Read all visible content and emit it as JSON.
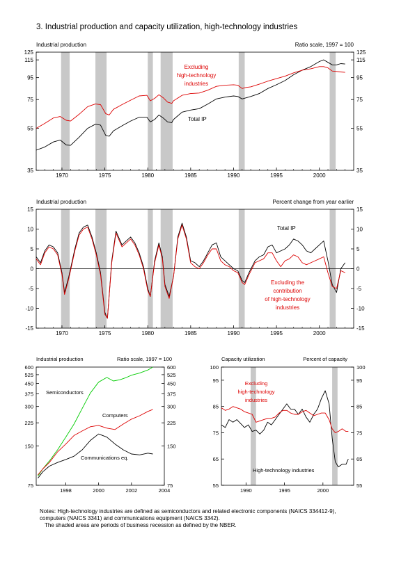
{
  "figure_title": "3. Industrial production and capacity utilization, high-technology industries",
  "recessions": [
    [
      1969.9,
      1970.9
    ],
    [
      1973.9,
      1975.2
    ],
    [
      1980.0,
      1980.6
    ],
    [
      1981.5,
      1982.9
    ],
    [
      1990.6,
      1991.3
    ],
    [
      2001.2,
      2001.9
    ]
  ],
  "notes": {
    "line1": "Notes: High-technology industries are defined as semiconductors and related electronic components (NAICS 334412-9),",
    "line2": "computers (NAICS 3341) and communications equipment (NAICS 3342).",
    "line3": "The shaded areas are periods of business recession as defined by the NBER."
  },
  "colors": {
    "black_series": "#000000",
    "red_series": "#dd0000",
    "green_series": "#00cc00",
    "recession_shade": "#c8c8c8"
  },
  "chart_data": [
    {
      "id": "ip_levels",
      "type": "line",
      "title": "Industrial production",
      "ylabel_right": "Ratio scale, 1997 = 100",
      "yscale": "log",
      "xlim": [
        1967,
        2004
      ],
      "ylim": [
        35,
        125
      ],
      "yticks": [
        35,
        55,
        75,
        95,
        115,
        125
      ],
      "xticks": [
        1970,
        1975,
        1980,
        1985,
        1990,
        1995,
        2000
      ],
      "series": [
        {
          "name": "Total IP",
          "color": "black",
          "x": [
            1967,
            1968,
            1969,
            1969.8,
            1970.5,
            1971,
            1972,
            1973,
            1973.9,
            1974.5,
            1975.1,
            1975.5,
            1976,
            1977,
            1978,
            1979,
            1979.9,
            1980.3,
            1980.8,
            1981.3,
            1981.8,
            1982.3,
            1982.8,
            1983,
            1984,
            1985,
            1986,
            1987,
            1988,
            1989,
            1990,
            1990.5,
            1991,
            1991.5,
            1992,
            1993,
            1994,
            1995,
            1996,
            1997,
            1998,
            1999,
            2000,
            2000.5,
            2001,
            2001.5,
            2002,
            2002.5,
            2003
          ],
          "y": [
            43.5,
            45,
            47.5,
            48.5,
            46,
            45.8,
            50,
            55,
            57.5,
            57,
            51,
            50.5,
            53.5,
            56.5,
            59.5,
            62,
            62,
            59,
            60.5,
            63.5,
            61.5,
            59,
            58.5,
            60.5,
            65.5,
            67,
            68,
            71.5,
            75.5,
            77,
            78,
            77.5,
            75.5,
            76.5,
            77.5,
            80,
            84.5,
            88,
            92,
            98,
            103,
            107,
            113,
            115,
            112,
            109,
            109,
            110.5,
            110
          ]
        },
        {
          "name": "Excluding high-technology industries",
          "color": "red",
          "x": [
            1967,
            1968,
            1969,
            1969.8,
            1970.5,
            1971,
            1972,
            1973,
            1973.9,
            1974.5,
            1975.1,
            1975.5,
            1976,
            1977,
            1978,
            1979,
            1979.9,
            1980.3,
            1980.8,
            1981.3,
            1981.8,
            1982.3,
            1982.8,
            1983,
            1984,
            1985,
            1986,
            1987,
            1988,
            1989,
            1990,
            1990.5,
            1991,
            1991.5,
            1992,
            1993,
            1994,
            1995,
            1996,
            1997,
            1998,
            1999,
            2000,
            2000.5,
            2001,
            2001.5,
            2002,
            2002.5,
            2003
          ],
          "y": [
            55,
            58,
            61.5,
            62.5,
            60,
            59.5,
            64,
            69.5,
            71.5,
            71,
            64.5,
            63.5,
            67.5,
            71,
            74.5,
            78,
            78.5,
            74,
            76,
            79,
            76.5,
            73,
            72,
            74,
            78.5,
            80,
            80.5,
            83,
            86.5,
            87.5,
            88,
            87.5,
            84.5,
            85.5,
            86,
            88.5,
            91.5,
            94,
            96.5,
            100,
            103,
            104.5,
            107,
            107,
            105.5,
            102,
            101.5,
            101,
            100.5
          ]
        }
      ],
      "annotations": [
        {
          "text": "Excluding",
          "color": "red"
        },
        {
          "text": "high-technology",
          "color": "red"
        },
        {
          "text": "industries",
          "color": "red"
        },
        {
          "text": "Total IP",
          "color": "black"
        }
      ]
    },
    {
      "id": "ip_pct_change",
      "type": "line",
      "title": "Industrial production",
      "ylabel_right": "Percent change from year earlier",
      "xlim": [
        1967,
        2004
      ],
      "ylim": [
        -15,
        15
      ],
      "yticks": [
        -15,
        -10,
        -5,
        0,
        5,
        10,
        15
      ],
      "xticks": [
        1970,
        1975,
        1980,
        1985,
        1990,
        1995,
        2000
      ],
      "zero_line": true,
      "series": [
        {
          "name": "Total IP",
          "color": "black",
          "x": [
            1967,
            1967.5,
            1968,
            1968.5,
            1969,
            1969.5,
            1970,
            1970.3,
            1970.8,
            1971.5,
            1972,
            1972.5,
            1973,
            1973.5,
            1974,
            1974.5,
            1975,
            1975.3,
            1975.8,
            1976.3,
            1977,
            1977.5,
            1978,
            1978.5,
            1979,
            1979.5,
            1980,
            1980.3,
            1980.8,
            1981.3,
            1981.7,
            1982,
            1982.5,
            1983,
            1983.5,
            1984,
            1984.5,
            1985,
            1985.5,
            1986,
            1986.5,
            1987,
            1987.5,
            1988,
            1988.5,
            1989,
            1989.5,
            1990,
            1990.5,
            1991,
            1991.3,
            1991.8,
            1992.5,
            1993,
            1993.5,
            1994,
            1994.5,
            1995,
            1995.5,
            1996,
            1996.5,
            1997,
            1997.5,
            1998,
            1998.5,
            1999,
            1999.5,
            2000,
            2000.5,
            2001,
            2001.5,
            2002,
            2002.5,
            2003
          ],
          "y": [
            3,
            1.5,
            4.5,
            6,
            5.5,
            4,
            -1,
            -6,
            -2,
            5,
            9,
            10.5,
            11,
            8,
            4,
            -1,
            -11,
            -12.5,
            2,
            9.5,
            6,
            7,
            8,
            6.5,
            4,
            0.5,
            -5,
            -7,
            2,
            6.5,
            3,
            -4,
            -7,
            -2,
            8,
            11.5,
            8,
            2,
            1.5,
            0.5,
            2,
            4,
            6,
            6.5,
            3,
            2,
            1,
            0,
            -0.5,
            -3,
            -3.5,
            -1,
            2,
            3,
            3.5,
            5.5,
            6,
            4,
            4.5,
            5,
            6,
            7.5,
            7,
            6,
            4.5,
            4,
            5,
            6,
            7,
            2,
            -4,
            -6,
            0,
            1.5
          ]
        },
        {
          "name": "Excluding the contribution of high-technology industries",
          "color": "red",
          "x": [
            1967,
            1967.5,
            1968,
            1968.5,
            1969,
            1969.5,
            1970,
            1970.3,
            1970.8,
            1971.5,
            1972,
            1972.5,
            1973,
            1973.5,
            1974,
            1974.5,
            1975,
            1975.3,
            1975.8,
            1976.3,
            1977,
            1977.5,
            1978,
            1978.5,
            1979,
            1979.5,
            1980,
            1980.3,
            1980.8,
            1981.3,
            1981.7,
            1982,
            1982.5,
            1983,
            1983.5,
            1984,
            1984.5,
            1985,
            1985.5,
            1986,
            1986.5,
            1987,
            1987.5,
            1988,
            1988.5,
            1989,
            1989.5,
            1990,
            1990.5,
            1991,
            1991.3,
            1991.8,
            1992.5,
            1993,
            1993.5,
            1994,
            1994.5,
            1995,
            1995.5,
            1996,
            1996.5,
            1997,
            1997.5,
            1998,
            1998.5,
            1999,
            1999.5,
            2000,
            2000.5,
            2001,
            2001.5,
            2002,
            2002.5,
            2003
          ],
          "y": [
            2.5,
            1,
            4,
            5.5,
            5,
            3.5,
            -1.5,
            -6.5,
            -2.5,
            4.5,
            8.5,
            10,
            10.5,
            7.5,
            3.5,
            -1.5,
            -11.5,
            -12.5,
            1.5,
            9,
            5.5,
            6.5,
            7.5,
            6,
            3.5,
            0,
            -5.5,
            -7,
            1.5,
            6,
            2.5,
            -4.5,
            -7.5,
            -2,
            7.5,
            11,
            7.5,
            1.5,
            0.5,
            0,
            1.5,
            3.5,
            5,
            5,
            2,
            1,
            0.5,
            -0.5,
            -1,
            -3.5,
            -4,
            -1.5,
            1.5,
            2,
            2.5,
            4,
            4,
            2,
            0.5,
            2,
            2.5,
            3.5,
            3,
            1.5,
            1,
            1.5,
            2,
            2.5,
            3,
            -1,
            -4.5,
            -5,
            -0.5,
            -1
          ]
        }
      ],
      "annotations": [
        {
          "text": "Total IP",
          "color": "black"
        },
        {
          "text": "Excluding the",
          "color": "red"
        },
        {
          "text": "contribution",
          "color": "red"
        },
        {
          "text": "of high-technology",
          "color": "red"
        },
        {
          "text": "industries",
          "color": "red"
        }
      ]
    },
    {
      "id": "hightech_components",
      "type": "line",
      "title": "Industrial production",
      "ylabel_right": "Ratio scale, 1997 = 100",
      "yscale": "log",
      "xlim": [
        1996.2,
        2004
      ],
      "ylim": [
        75,
        600
      ],
      "yticks": [
        75,
        150,
        225,
        300,
        375,
        450,
        525,
        600
      ],
      "xticks": [
        1998,
        2000,
        2002,
        2004
      ],
      "series": [
        {
          "name": "Semiconductors",
          "color": "green",
          "x": [
            1996.3,
            1996.6,
            1997,
            1997.5,
            1998,
            1998.5,
            1999,
            1999.5,
            2000,
            2000.5,
            2000.9,
            2001.3,
            2001.7,
            2002,
            2002.5,
            2003,
            2003.3
          ],
          "y": [
            88,
            100,
            115,
            140,
            175,
            220,
            290,
            380,
            460,
            500,
            470,
            480,
            500,
            520,
            540,
            570,
            600
          ]
        },
        {
          "name": "Computers",
          "color": "red",
          "x": [
            1996.3,
            1996.6,
            1997,
            1997.5,
            1998,
            1998.5,
            1999,
            1999.5,
            2000,
            2000.5,
            2001,
            2001.5,
            2002,
            2002.5,
            2003,
            2003.3
          ],
          "y": [
            90,
            100,
            112,
            135,
            155,
            180,
            195,
            210,
            215,
            205,
            200,
            220,
            240,
            255,
            275,
            285
          ]
        },
        {
          "name": "Communications eq.",
          "color": "black",
          "x": [
            1996.3,
            1996.6,
            1997,
            1997.5,
            1998,
            1998.5,
            1999,
            1999.5,
            2000,
            2000.5,
            2001,
            2001.5,
            2002,
            2002.5,
            2003,
            2003.3
          ],
          "y": [
            85,
            95,
            105,
            112,
            118,
            125,
            140,
            165,
            185,
            175,
            155,
            140,
            130,
            128,
            132,
            130
          ]
        }
      ],
      "annotations": [
        {
          "text": "Semiconductors",
          "color": "black"
        },
        {
          "text": "Computers",
          "color": "black"
        },
        {
          "text": "Communications eq.",
          "color": "black"
        }
      ]
    },
    {
      "id": "capacity_utilization",
      "type": "line",
      "title": "Capacity utilization",
      "ylabel_right": "Percent of capacity",
      "xlim": [
        1986.8,
        2004
      ],
      "ylim": [
        55,
        100
      ],
      "yticks": [
        55,
        65,
        75,
        85,
        95,
        100
      ],
      "xticks": [
        1990,
        1995,
        2000
      ],
      "series": [
        {
          "name": "High-technology industries",
          "color": "black",
          "x": [
            1986.8,
            1987.3,
            1987.8,
            1988.3,
            1988.8,
            1989.3,
            1989.8,
            1990.3,
            1990.8,
            1991.3,
            1991.8,
            1992.3,
            1992.8,
            1993.3,
            1993.8,
            1994.3,
            1994.8,
            1995.3,
            1995.8,
            1996.3,
            1996.8,
            1997.3,
            1997.8,
            1998.3,
            1998.8,
            1999.3,
            1999.8,
            2000.3,
            2000.8,
            2001.2,
            2001.6,
            2002,
            2002.5,
            2003,
            2003.3
          ],
          "y": [
            78,
            77,
            80,
            79,
            80,
            78.5,
            77,
            78,
            75.5,
            76,
            74.5,
            76,
            79,
            78,
            80,
            82,
            84,
            86,
            84,
            84,
            82,
            84,
            81,
            79,
            82,
            84,
            88,
            91,
            86,
            73,
            64,
            62,
            63,
            63,
            65
          ]
        },
        {
          "name": "Excluding high-technology industries",
          "color": "red",
          "x": [
            1986.8,
            1987.3,
            1987.8,
            1988.3,
            1988.8,
            1989.3,
            1989.8,
            1990.3,
            1990.8,
            1991.3,
            1991.8,
            1992.3,
            1992.8,
            1993.3,
            1993.8,
            1994.3,
            1994.8,
            1995.3,
            1995.8,
            1996.3,
            1996.8,
            1997.3,
            1997.8,
            1998.3,
            1998.8,
            1999.3,
            1999.8,
            2000.3,
            2000.8,
            2001.2,
            2001.6,
            2002,
            2002.5,
            2003,
            2003.3
          ],
          "y": [
            84.5,
            83.5,
            84,
            85,
            84.5,
            84,
            83,
            82.5,
            82,
            79,
            79.5,
            80,
            80.5,
            80.5,
            81,
            82.5,
            83.5,
            83.5,
            82.5,
            82,
            82,
            83,
            83.5,
            82.5,
            81.5,
            82,
            82.5,
            82.5,
            80,
            76.5,
            75,
            75.5,
            76.5,
            75.5,
            75.5
          ]
        }
      ],
      "annotations": [
        {
          "text": "Excluding",
          "color": "red"
        },
        {
          "text": "high-technology",
          "color": "red"
        },
        {
          "text": "industries",
          "color": "red"
        },
        {
          "text": "High-technology industries",
          "color": "black"
        }
      ]
    }
  ]
}
